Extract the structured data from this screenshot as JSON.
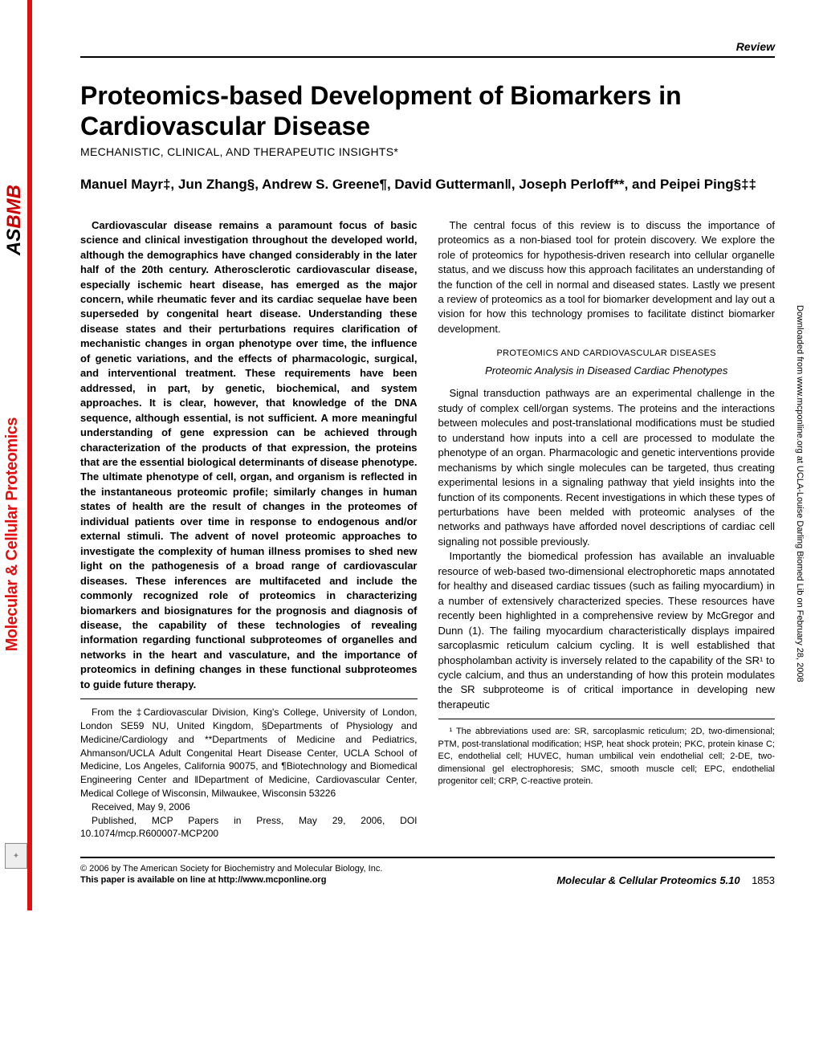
{
  "header": {
    "review_label": "Review"
  },
  "title": "Proteomics-based Development of Biomarkers in Cardiovascular Disease",
  "subtitle": "MECHANISTIC, CLINICAL, AND THERAPEUTIC INSIGHTS*",
  "authors": "Manuel Mayr‡, Jun Zhang§, Andrew S. Greene¶, David Gutterman‖, Joseph Perloff**, and Peipei Ping§‡‡",
  "abstract": "Cardiovascular disease remains a paramount focus of basic science and clinical investigation throughout the developed world, although the demographics have changed considerably in the later half of the 20th century. Atherosclerotic cardiovascular disease, especially ischemic heart disease, has emerged as the major concern, while rheumatic fever and its cardiac sequelae have been superseded by congenital heart disease. Understanding these disease states and their perturbations requires clarification of mechanistic changes in organ phenotype over time, the influence of genetic variations, and the effects of pharmacologic, surgical, and interventional treatment. These requirements have been addressed, in part, by genetic, biochemical, and system approaches. It is clear, however, that knowledge of the DNA sequence, although essential, is not sufficient. A more meaningful understanding of gene expression can be achieved through characterization of the products of that expression, the proteins that are the essential biological determinants of disease phenotype. The ultimate phenotype of cell, organ, and organism is reflected in the instantaneous proteomic profile; similarly changes in human states of health are the result of changes in the proteomes of individual patients over time in response to endogenous and/or external stimuli. The advent of novel proteomic approaches to investigate the complexity of human illness promises to shed new light on the pathogenesis of a broad range of cardiovascular diseases. These inferences are multifaceted and include the commonly recognized role of proteomics in characterizing biomarkers and biosignatures for the prognosis and diagnosis of disease, the capability of these technologies of revealing information regarding functional subproteomes of organelles and networks in the heart and vasculature, and the importance of proteomics in defining changes in these functional subproteomes to guide future therapy.",
  "affiliations": "From the ‡Cardiovascular Division, King's College, University of London, London SE59 NU, United Kingdom, §Departments of Physiology and Medicine/Cardiology and **Departments of Medicine and Pediatrics, Ahmanson/UCLA Adult Congenital Heart Disease Center, UCLA School of Medicine, Los Angeles, California 90075, and ¶Biotechnology and Biomedical Engineering Center and ‖Department of Medicine, Cardiovascular Center, Medical College of Wisconsin, Milwaukee, Wisconsin 53226",
  "received": "Received, May 9, 2006",
  "published": "Published, MCP Papers in Press, May 29, 2006, DOI 10.1074/mcp.R600007-MCP200",
  "intro_para": "The central focus of this review is to discuss the importance of proteomics as a non-biased tool for protein discovery. We explore the role of proteomics for hypothesis-driven research into cellular organelle status, and we discuss how this approach facilitates an understanding of the function of the cell in normal and diseased states. Lastly we present a review of proteomics as a tool for biomarker development and lay out a vision for how this technology promises to facilitate distinct biomarker development.",
  "section_head": "PROTEOMICS AND CARDIOVASCULAR DISEASES",
  "section_sub": "Proteomic Analysis in Diseased Cardiac Phenotypes",
  "body_p1": "Signal transduction pathways are an experimental challenge in the study of complex cell/organ systems. The proteins and the interactions between molecules and post-translational modifications must be studied to understand how inputs into a cell are processed to modulate the phenotype of an organ. Pharmacologic and genetic interventions provide mechanisms by which single molecules can be targeted, thus creating experimental lesions in a signaling pathway that yield insights into the function of its components. Recent investigations in which these types of perturbations have been melded with proteomic analyses of the networks and pathways have afforded novel descriptions of cardiac cell signaling not possible previously.",
  "body_p2": "Importantly the biomedical profession has available an invaluable resource of web-based two-dimensional electrophoretic maps annotated for healthy and diseased cardiac tissues (such as failing myocardium) in a number of extensively characterized species. These resources have recently been highlighted in a comprehensive review by McGregor and Dunn (1). The failing myocardium characteristically displays impaired sarcoplasmic reticulum calcium cycling. It is well established that phospholamban activity is inversely related to the capability of the SR¹ to cycle calcium, and thus an understanding of how this protein modulates the SR subproteome is of critical importance in developing new therapeutic",
  "footnote": "¹ The abbreviations used are: SR, sarcoplasmic reticulum; 2D, two-dimensional; PTM, post-translational modification; HSP, heat shock protein; PKC, protein kinase C; EC, endothelial cell; HUVEC, human umbilical vein endothelial cell; 2-DE, two-dimensional gel electrophoresis; SMC, smooth muscle cell; EPC, endothelial progenitor cell; CRP, C-reactive protein.",
  "footer": {
    "copyright": "© 2006 by The American Society for Biochemistry and Molecular Biology, Inc.",
    "online": "This paper is available on line at http://www.mcponline.org",
    "journal": "Molecular & Cellular Proteomics 5.10",
    "page": "1853"
  },
  "sidebar": "Downloaded from www.mcponline.org at UCLA-Louise Darling Biomed Lib on February 28, 2008",
  "rail": {
    "asbmb_as": "AS",
    "asbmb_bmb": "BMB",
    "journal": "Molecular & Cellular Proteomics",
    "red_color": "#d11"
  }
}
